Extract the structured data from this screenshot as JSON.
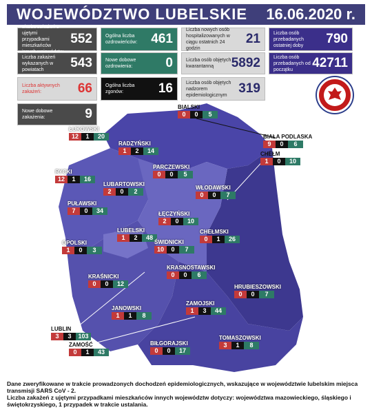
{
  "header": {
    "title": "WOJEWÓDZTWO LUBELSKIE",
    "date": "16.06.2020 r."
  },
  "stats": {
    "infected_other_voiv": {
      "label": "Liczba zakażeń z ujętymi przypadkami mieszkańców innych województw",
      "value": "552"
    },
    "infected_counties": {
      "label": "Liczba zakażeń wykazanych w powiatach",
      "value": "543"
    },
    "active_infected": {
      "label": "Liczba aktywnych zakażeń:",
      "value": "66"
    },
    "new_daily_infected": {
      "label": "Nowe dobowe zakażenia:",
      "value": "9"
    },
    "total_recovered": {
      "label": "Ogólna liczba ozdrowieńców:",
      "value": "461"
    },
    "new_daily_recovered": {
      "label": "Nowe dobowe ozdrowienia:",
      "value": "0"
    },
    "total_deaths": {
      "label": "Ogólna liczba zgonów:",
      "value": "16"
    },
    "new_hospitalized": {
      "label": "Liczba nowych osób hospitalizowanych w ciągu ostatnich 24 godzin",
      "value": "21"
    },
    "quarantined": {
      "label": "Liczba osób objętych kwarantanną",
      "value": "5892"
    },
    "epidemiological": {
      "label": "Liczba osób objętych nadzorem epidemiologicznym",
      "value": "319"
    },
    "tested_day": {
      "label": "Liczba osób przebadanych ostatniej doby",
      "value": "790"
    },
    "tested_total": {
      "label": "Liczba osób przebadanych od początku",
      "value": "42711"
    }
  },
  "seal_text": "PAŃSTWOWA INSPEKCJA SANITARNA",
  "counties": [
    {
      "name": "BIALSKI",
      "a": "0",
      "b": "0",
      "c": "5"
    },
    {
      "name": "BIAŁA PODLASKA",
      "a": "9",
      "b": "0",
      "c": "6"
    },
    {
      "name": "ŁUKOWSKI",
      "a": "12",
      "b": "1",
      "c": "20"
    },
    {
      "name": "RADZYŃSKI",
      "a": "1",
      "b": "2",
      "c": "14"
    },
    {
      "name": "CHEŁM",
      "a": "1",
      "b": "0",
      "c": "10"
    },
    {
      "name": "PARCZEWSKI",
      "a": "0",
      "b": "0",
      "c": "5"
    },
    {
      "name": "RYCKI",
      "a": "12",
      "b": "1",
      "c": "16"
    },
    {
      "name": "LUBARTOWSKI",
      "a": "2",
      "b": "0",
      "c": "2"
    },
    {
      "name": "WŁODAWSKI",
      "a": "0",
      "b": "0",
      "c": "7"
    },
    {
      "name": "PUŁAWSKI",
      "a": "7",
      "b": "0",
      "c": "34"
    },
    {
      "name": "ŁĘCZYŃSKI",
      "a": "2",
      "b": "0",
      "c": "10"
    },
    {
      "name": "LUBELSKI",
      "a": "1",
      "b": "2",
      "c": "48"
    },
    {
      "name": "CHEŁMSKI",
      "a": "0",
      "b": "1",
      "c": "26"
    },
    {
      "name": "OPOLSKI",
      "a": "1",
      "b": "0",
      "c": "3"
    },
    {
      "name": "ŚWIDNICKI",
      "a": "10",
      "b": "0",
      "c": "7"
    },
    {
      "name": "KRASNOSTAWSKI",
      "a": "0",
      "b": "0",
      "c": "6"
    },
    {
      "name": "KRAŚNICKI",
      "a": "0",
      "b": "0",
      "c": "12"
    },
    {
      "name": "HRUBIESZOWSKI",
      "a": "0",
      "b": "0",
      "c": "7"
    },
    {
      "name": "JANOWSKI",
      "a": "1",
      "b": "1",
      "c": "8"
    },
    {
      "name": "ZAMOJSKI",
      "a": "1",
      "b": "3",
      "c": "44"
    },
    {
      "name": "LUBLIN",
      "a": "3",
      "b": "3",
      "c": "103"
    },
    {
      "name": "TOMASZOWSKI",
      "a": "3",
      "b": "1",
      "c": "8"
    },
    {
      "name": "ZAMOŚĆ",
      "a": "0",
      "b": "1",
      "c": "43"
    },
    {
      "name": "BIŁGORAJSKI",
      "a": "0",
      "b": "0",
      "c": "17"
    }
  ],
  "footer": {
    "line1": "Dane zweryfikowane w trakcie prowadzonych dochodzeń epidemiologicznych, wskazujące w województwie lubelskim miejsca transmisji SARS CoV - 2.",
    "line2": "Liczba zakażeń z ujętymi przypadkami mieszkańców innych województw dotyczy: województwa mazowieckiego, śląskiego i świętokrzyskiego, 1 przypadek w trakcie ustalania."
  }
}
